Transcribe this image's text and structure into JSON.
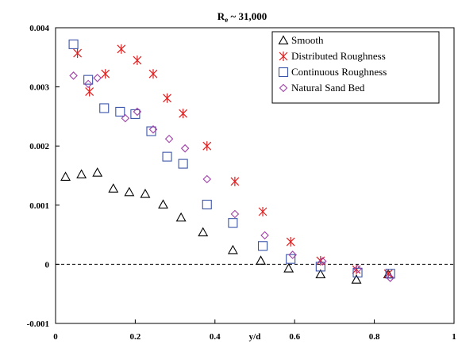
{
  "chart_data": {
    "type": "scatter",
    "title": "R_e ~ 31,000",
    "title_main": "R",
    "title_sub": "e",
    "title_rest": " ~ 31,000",
    "xlabel": "y/d",
    "ylabel": "",
    "xlim": [
      0,
      1
    ],
    "ylim": [
      -0.001,
      0.004
    ],
    "x_ticks": [
      "0",
      "0.2",
      "0.4",
      "0.6",
      "0.8",
      "1"
    ],
    "y_ticks": [
      "-0.001",
      "0",
      "0.001",
      "0.002",
      "0.003",
      "0.004"
    ],
    "x_tick_values": [
      0,
      0.2,
      0.4,
      0.6,
      0.8,
      1
    ],
    "y_tick_values": [
      -0.001,
      0,
      0.001,
      0.002,
      0.003,
      0.004
    ],
    "grid": false,
    "zero_line": "dashed",
    "legend_position": "top-right",
    "series": [
      {
        "name": "Smooth",
        "marker": "triangle",
        "color": "#000000",
        "points": [
          [
            0.025,
            0.00148
          ],
          [
            0.065,
            0.00152
          ],
          [
            0.105,
            0.00155
          ],
          [
            0.145,
            0.00128
          ],
          [
            0.185,
            0.00122
          ],
          [
            0.225,
            0.00119
          ],
          [
            0.27,
            0.00101
          ],
          [
            0.315,
            0.00079
          ],
          [
            0.37,
            0.00054
          ],
          [
            0.445,
            0.00024
          ],
          [
            0.515,
            6e-05
          ],
          [
            0.585,
            -7e-05
          ],
          [
            0.665,
            -0.00017
          ],
          [
            0.755,
            -0.00026
          ],
          [
            0.835,
            -0.00017
          ]
        ]
      },
      {
        "name": "Distributed Roughness",
        "marker": "asterisk",
        "color": "#e02020",
        "points": [
          [
            0.055,
            0.00357
          ],
          [
            0.085,
            0.00292
          ],
          [
            0.125,
            0.00322
          ],
          [
            0.165,
            0.00364
          ],
          [
            0.205,
            0.00345
          ],
          [
            0.245,
            0.00322
          ],
          [
            0.28,
            0.00281
          ],
          [
            0.32,
            0.00255
          ],
          [
            0.38,
            0.002
          ],
          [
            0.45,
            0.0014
          ],
          [
            0.52,
            0.00089
          ],
          [
            0.59,
            0.00038
          ],
          [
            0.665,
            6e-05
          ],
          [
            0.755,
            -9e-05
          ],
          [
            0.835,
            -0.00016
          ]
        ]
      },
      {
        "name": "Continuous Roughness",
        "marker": "square",
        "color": "#3a54a8",
        "points": [
          [
            0.045,
            0.00372
          ],
          [
            0.082,
            0.00312
          ],
          [
            0.122,
            0.00264
          ],
          [
            0.162,
            0.00258
          ],
          [
            0.2,
            0.00254
          ],
          [
            0.24,
            0.00225
          ],
          [
            0.28,
            0.00182
          ],
          [
            0.32,
            0.0017
          ],
          [
            0.38,
            0.00101
          ],
          [
            0.445,
            0.0007
          ],
          [
            0.52,
            0.00031
          ],
          [
            0.59,
            9e-05
          ],
          [
            0.665,
            -4e-05
          ],
          [
            0.758,
            -0.00014
          ],
          [
            0.84,
            -0.00016
          ]
        ]
      },
      {
        "name": "Natural Sand Bed",
        "marker": "diamond",
        "color": "#a040a8",
        "points": [
          [
            0.045,
            0.00319
          ],
          [
            0.082,
            0.00305
          ],
          [
            0.105,
            0.00315
          ],
          [
            0.175,
            0.00247
          ],
          [
            0.205,
            0.00258
          ],
          [
            0.245,
            0.00228
          ],
          [
            0.285,
            0.00212
          ],
          [
            0.325,
            0.00196
          ],
          [
            0.38,
            0.00144
          ],
          [
            0.45,
            0.00085
          ],
          [
            0.525,
            0.00049
          ],
          [
            0.595,
            0.00016
          ],
          [
            0.67,
            5e-05
          ],
          [
            0.758,
            -8e-05
          ],
          [
            0.84,
            -0.00023
          ]
        ]
      }
    ]
  }
}
